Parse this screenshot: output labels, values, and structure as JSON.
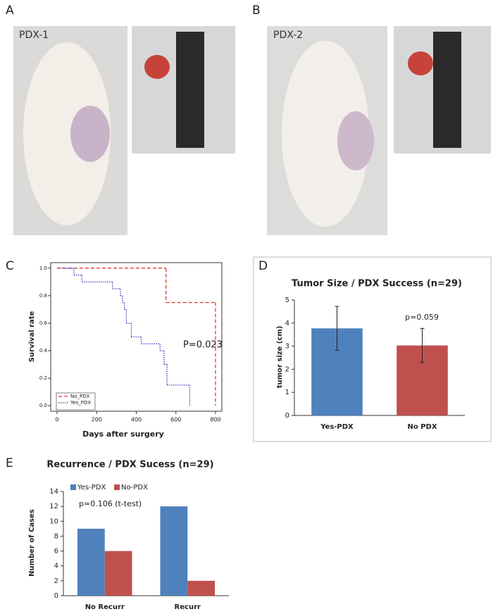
{
  "panel_labels": [
    "A",
    "B",
    "C",
    "D",
    "E"
  ],
  "photos": [
    {
      "label": "PDX-1"
    },
    {
      "label": "PDX-2"
    }
  ],
  "chart_data": [
    {
      "type": "line",
      "drawstyle": "steps-post",
      "xlabel": "Days after surgery",
      "ylabel": "Survival rate",
      "annotation": "P=0.023",
      "legend": "lower left",
      "xlim": [
        -32,
        832
      ],
      "xticks": [
        0,
        200,
        400,
        600,
        800
      ],
      "ylim": [
        -0.04,
        1.04
      ],
      "yticks": [
        {
          "value": 0,
          "label": "0.0"
        },
        0.2,
        0.4,
        0.6,
        0.8,
        {
          "value": 1,
          "label": "1.0"
        }
      ],
      "series": [
        {
          "name": "No_PDX",
          "color": "#e0392e",
          "linestyle": "dashed",
          "x": [
            0,
            550,
            800
          ],
          "values": [
            1,
            0.75,
            0
          ]
        },
        {
          "name": "Yes_PDX",
          "color": "#3b3fb0",
          "linestyle": "dotted",
          "x": [
            0,
            85,
            125,
            280,
            320,
            330,
            340,
            350,
            375,
            425,
            520,
            540,
            555,
            670
          ],
          "values": [
            1,
            0.95,
            0.9,
            0.85,
            0.8,
            0.75,
            0.7,
            0.6,
            0.5,
            0.45,
            0.4,
            0.3,
            0.15,
            0
          ]
        }
      ]
    },
    {
      "type": "bar",
      "title": "Tumor Size / PDX Success  (n=29)",
      "ylabel": "tumor size (cm)",
      "annotation": "p=0.059",
      "categories": [
        "Yes-PDX",
        "No PDX"
      ],
      "values": [
        3.77,
        3.03
      ],
      "errors": [
        0.95,
        0.74
      ],
      "colors": [
        "#4f81bd",
        "#c0504d"
      ],
      "ylim": [
        0,
        5
      ],
      "yticks": [
        0,
        1,
        2,
        3,
        4,
        5
      ]
    },
    {
      "type": "grouped_bar",
      "title": "Recurrence / PDX Sucess (n=29)",
      "ylabel": "Number of Cases",
      "annotation": "p=0.106 (t-test)",
      "legend": "upper left",
      "categories": [
        "No Recurr",
        "Recurr"
      ],
      "series": [
        {
          "name": "Yes-PDX",
          "color": "#4f81bd",
          "values": [
            9,
            12
          ]
        },
        {
          "name": "No-PDX",
          "color": "#c0504d",
          "values": [
            6,
            2
          ]
        }
      ],
      "ylim": [
        0,
        14
      ],
      "yticks": [
        0,
        2,
        4,
        6,
        8,
        10,
        12,
        14
      ]
    }
  ]
}
